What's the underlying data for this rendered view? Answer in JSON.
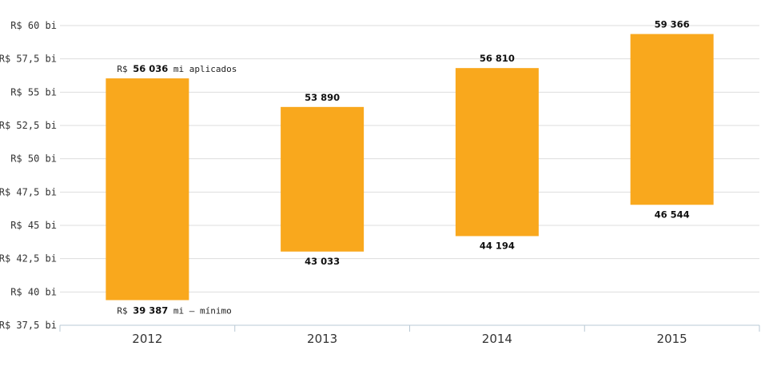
{
  "chart_data": {
    "type": "floating-bar",
    "categories": [
      "2012",
      "2013",
      "2014",
      "2015"
    ],
    "series": [
      {
        "name": "aplicados",
        "values": [
          56036,
          53890,
          56810,
          59366
        ]
      },
      {
        "name": "mínimo",
        "values": [
          39387,
          43033,
          44194,
          46544
        ]
      }
    ],
    "bars": [
      {
        "category": "2012",
        "min": 39387,
        "max": 56036,
        "max_label": "56 036",
        "min_label": "39 387"
      },
      {
        "category": "2013",
        "min": 43033,
        "max": 53890,
        "max_label": "53 890",
        "min_label": "43 033"
      },
      {
        "category": "2014",
        "min": 44194,
        "max": 56810,
        "max_label": "56 810",
        "min_label": "44 194"
      },
      {
        "category": "2015",
        "min": 46544,
        "max": 59366,
        "max_label": "59 366",
        "min_label": "46 544"
      }
    ],
    "annotations": {
      "max_prefix": "R$ ",
      "max_suffix": " mi aplicados",
      "min_prefix": "R$ ",
      "min_suffix": " mi – mínimo"
    },
    "yticks": [
      {
        "value": 37500,
        "label": "R$ 37,5 bi"
      },
      {
        "value": 40000,
        "label": "R$ 40 bi"
      },
      {
        "value": 42500,
        "label": "R$ 42,5 bi"
      },
      {
        "value": 45000,
        "label": "R$ 45 bi"
      },
      {
        "value": 47500,
        "label": "R$ 47,5 bi"
      },
      {
        "value": 50000,
        "label": "R$ 50 bi"
      },
      {
        "value": 52500,
        "label": "R$ 52,5 bi"
      },
      {
        "value": 55000,
        "label": "R$ 55 bi"
      },
      {
        "value": 57500,
        "label": "R$ 57,5 bi"
      },
      {
        "value": 60000,
        "label": "R$ 60 bi"
      }
    ],
    "ylim": [
      37500,
      60000
    ],
    "grid": true,
    "title": "",
    "xlabel": "",
    "ylabel": "",
    "colors": {
      "bar": "#F9A81D",
      "grid": "#dddddd",
      "axis": "#b8c8d4"
    }
  }
}
